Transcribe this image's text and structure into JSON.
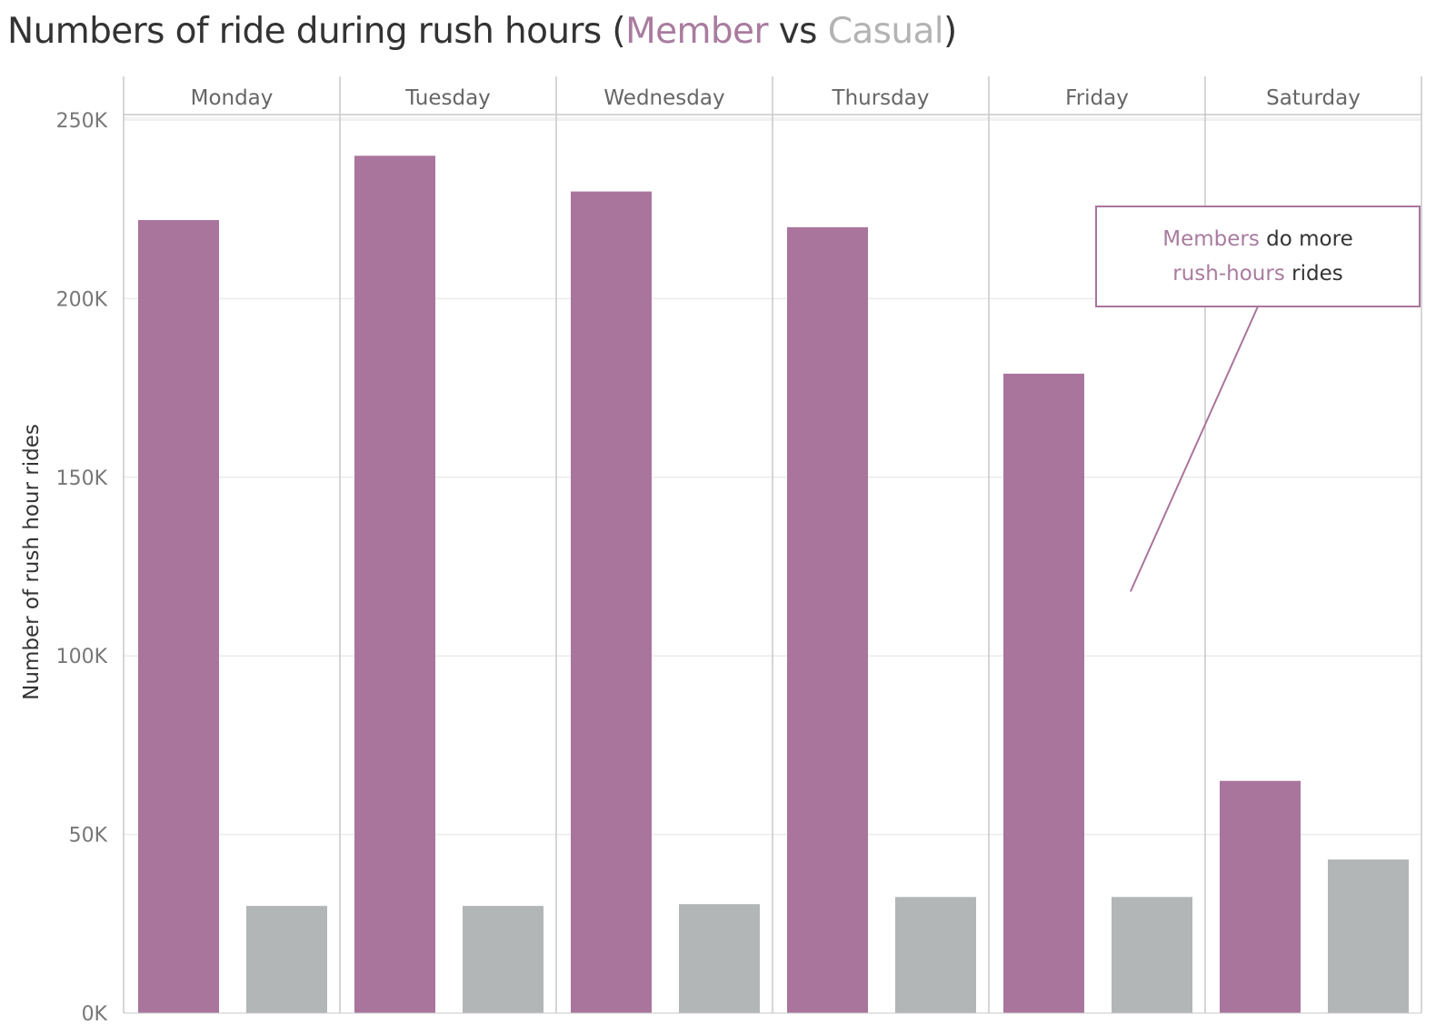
{
  "title": {
    "prefix": "Numbers of ride during rush hours (",
    "member": "Member",
    "middle": " vs ",
    "casual": "Casual",
    "suffix": ")"
  },
  "chart_data": {
    "type": "bar",
    "ylabel": "Number of rush hour rides",
    "xlabel": "",
    "ylim": [
      0,
      250000
    ],
    "yticks": [
      0,
      50000,
      100000,
      150000,
      200000,
      250000
    ],
    "ytick_labels": [
      "0K",
      "50K",
      "100K",
      "150K",
      "200K",
      "250K"
    ],
    "categories": [
      "Monday",
      "Tuesday",
      "Wednesday",
      "Thursday",
      "Friday",
      "Saturday"
    ],
    "series": [
      {
        "name": "Member",
        "values": [
          222000,
          240000,
          230000,
          220000,
          179000,
          65000
        ]
      },
      {
        "name": "Casual",
        "values": [
          30000,
          30000,
          30500,
          32500,
          32500,
          43000
        ]
      }
    ],
    "grid": true,
    "colors": {
      "member": "#a9759c",
      "casual": "#b2b6b7"
    },
    "annotation": {
      "parts": [
        "Members",
        " do more",
        "rush-hours",
        " rides"
      ],
      "target_category": "Friday",
      "target_value": 118000
    }
  }
}
